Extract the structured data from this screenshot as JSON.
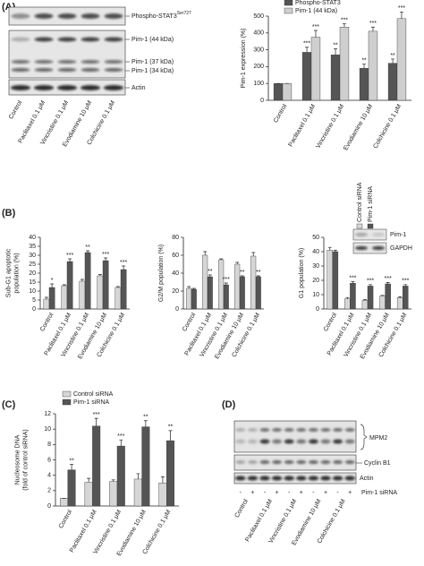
{
  "panel_labels": [
    "(A)",
    "(B)",
    "(C)",
    "(D)"
  ],
  "blot_a": {
    "labels": [
      {
        "text": "Phospho-STAT3",
        "sup": "Ser727"
      },
      {
        "text": "Pim-1 (44 kDa)"
      },
      {
        "text": "Pim-1 (37 kDa)"
      },
      {
        "text": "Pim-1 (34 kDa)"
      },
      {
        "text": "Actin"
      }
    ],
    "lanes": [
      "Control",
      "Paclitaxel 0.1 μM",
      "Vincristine 0.1 μM",
      "Evodiamine 10 μM",
      "Colchicine 0.1 μM"
    ]
  },
  "blot_b": {
    "labels": [
      "Pim-1",
      "GAPDH"
    ]
  },
  "blot_d": {
    "labels": [
      "MPM2",
      "Cyclin B1",
      "Actin"
    ],
    "sirna_label": "Pim-1 siRNA",
    "sirna": [
      "-",
      "+",
      "-",
      "+",
      "-",
      "+",
      "-",
      "+",
      "-",
      "+"
    ],
    "lanes": [
      "Control",
      "Paclitaxel 0.1 μM",
      "Vincristine 0.1 μM",
      "Evodiamine 10 μM",
      "Colchicine 0.1 μM"
    ]
  },
  "chart_data": [
    {
      "type": "bar",
      "y_label": "Pim-1 expression (%)",
      "categories": [
        "Control",
        "Paclitaxel 0.1 μM",
        "Vincristine 0.1 μM",
        "Evodiamine 10 μM",
        "Colchicine 0.1 μM"
      ],
      "series": [
        {
          "name": "Phospho-STAT3",
          "color": "#555555",
          "values": [
            100,
            285,
            270,
            190,
            220
          ],
          "errors": [
            0,
            30,
            35,
            25,
            25
          ],
          "annotations": [
            null,
            "***",
            "**",
            "**",
            "**"
          ]
        },
        {
          "name": "Pim-1 (44 kDa)",
          "color": "#cfcfcf",
          "values": [
            100,
            375,
            435,
            410,
            485
          ],
          "errors": [
            0,
            40,
            20,
            25,
            40
          ],
          "annotations": [
            null,
            "***",
            "***",
            "***",
            "***"
          ]
        }
      ],
      "ylim": [
        0,
        500
      ],
      "yticks": [
        0,
        100,
        200,
        300,
        400,
        500
      ],
      "legend": true
    },
    {
      "type": "bar",
      "y_label": [
        "Sub-G1 apoptotic",
        "population (%)"
      ],
      "categories": [
        "Control",
        "Paclitaxel 0.1 μM",
        "Vincristine 0.1 μM",
        "Evodiamine 10 μM",
        "Colchicine 0.1 μM"
      ],
      "series": [
        {
          "name": "Control siRNA",
          "color": "#d6d6d6",
          "values": [
            5.5,
            13,
            15.5,
            18.5,
            12
          ],
          "errors": [
            1,
            0.5,
            1,
            0.8,
            0.5
          ],
          "annotations": [
            null,
            null,
            null,
            null,
            null
          ]
        },
        {
          "name": "Pim-1 siRNA",
          "color": "#555555",
          "values": [
            12,
            26.5,
            31.5,
            27,
            22
          ],
          "errors": [
            2,
            1.5,
            1,
            1.5,
            2
          ],
          "annotations": [
            "*",
            "***",
            "**",
            "***",
            "***"
          ]
        }
      ],
      "ylim": [
        0,
        40
      ],
      "yticks": [
        0,
        5,
        10,
        15,
        20,
        25,
        30,
        35,
        40
      ]
    },
    {
      "type": "bar",
      "y_label": "G2/M population (%)",
      "categories": [
        "Control",
        "Paclitaxel 0.1 μM",
        "Vincristine 0.1 μM",
        "Evodiamine 10 μM",
        "Colchicine 0.1 μM"
      ],
      "series": [
        {
          "name": "Control siRNA",
          "color": "#d6d6d6",
          "values": [
            23,
            60,
            55,
            50,
            59
          ],
          "errors": [
            2,
            4,
            1,
            2,
            4
          ],
          "annotations": [
            null,
            null,
            null,
            null,
            null
          ]
        },
        {
          "name": "Pim-1 siRNA",
          "color": "#555555",
          "values": [
            22,
            36,
            27,
            36,
            36
          ],
          "errors": [
            1,
            2,
            2,
            1,
            1
          ],
          "annotations": [
            null,
            "**",
            "***",
            "**",
            "**"
          ]
        }
      ],
      "ylim": [
        0,
        80
      ],
      "yticks": [
        0,
        20,
        40,
        60,
        80
      ]
    },
    {
      "type": "bar",
      "y_label": "G1 population (%)",
      "categories": [
        "Control",
        "Paclitaxel 0.1 μM",
        "Vincristine 0.1 μM",
        "Evodiamine 10 μM",
        "Colchicine 0.1 μM"
      ],
      "series": [
        {
          "name": "Control siRNA",
          "color": "#d6d6d6",
          "values": [
            41,
            7,
            6,
            9,
            8
          ],
          "errors": [
            2,
            1,
            0.5,
            0.5,
            0.5
          ],
          "annotations": [
            null,
            null,
            null,
            null,
            null
          ]
        },
        {
          "name": "Pim-1 siRNA",
          "color": "#555555",
          "values": [
            40,
            18,
            16,
            17.5,
            16
          ],
          "errors": [
            1,
            1,
            1,
            1,
            1
          ],
          "annotations": [
            null,
            "***",
            "***",
            "***",
            "***"
          ]
        }
      ],
      "ylim": [
        0,
        50
      ],
      "yticks": [
        0,
        10,
        20,
        30,
        40,
        50
      ],
      "legend": true
    },
    {
      "type": "bar",
      "y_label": [
        "Nucleosome DNA",
        "(fold of control siRNA)"
      ],
      "categories": [
        "Control",
        "Paclitaxel 0.1 μM",
        "Vincristine 0.1 μM",
        "Evodiamine 10 μM",
        "Colchicine 0.1 μM"
      ],
      "series": [
        {
          "name": "Control siRNA",
          "color": "#d6d6d6",
          "values": [
            1,
            3.1,
            3.2,
            3.5,
            3
          ],
          "errors": [
            0,
            0.5,
            0.2,
            0.7,
            0.8
          ],
          "annotations": [
            null,
            null,
            null,
            null,
            null
          ]
        },
        {
          "name": "Pim-1 siRNA",
          "color": "#555555",
          "values": [
            4.7,
            10.4,
            7.8,
            10.3,
            8.5
          ],
          "errors": [
            0.7,
            1,
            0.8,
            0.8,
            1.3
          ],
          "annotations": [
            "**",
            "***",
            "***",
            "**",
            "**"
          ]
        }
      ],
      "ylim": [
        0,
        12
      ],
      "yticks": [
        0,
        2,
        4,
        6,
        8,
        10,
        12
      ],
      "legend": true
    }
  ]
}
